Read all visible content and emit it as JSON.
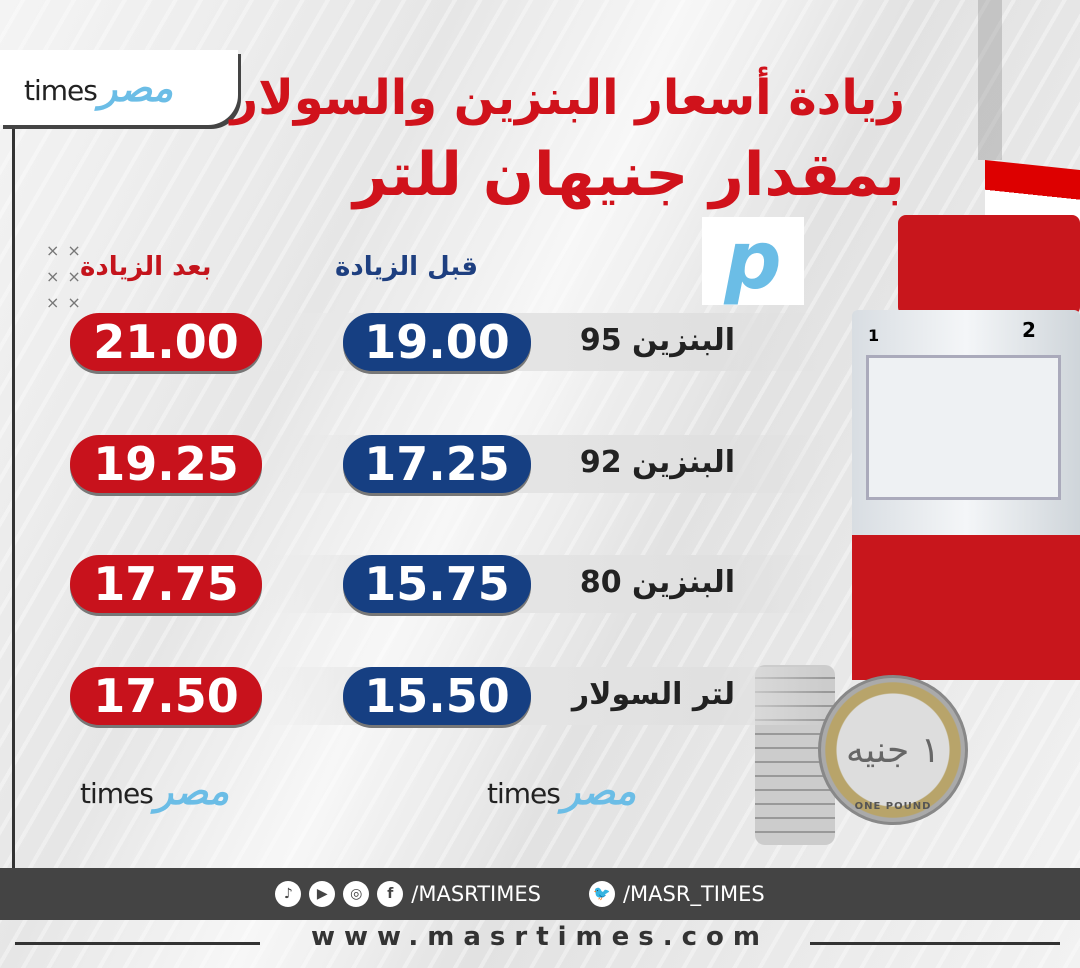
{
  "brand": {
    "logo_latin": "times",
    "logo_arabic": "مصر",
    "accent": "#6bbde6"
  },
  "title": {
    "line1": "زيادة أسعار البنزين والسولار",
    "line2": "بمقدار جنيهان للتر",
    "color": "#d0121b"
  },
  "columns": {
    "before": "قبل الزيادة",
    "after": "بعد الزيادة",
    "before_color": "#163f82",
    "after_color": "#c8121c"
  },
  "rows": [
    {
      "label": "البنزين 95",
      "before": "19.00",
      "after": "21.00"
    },
    {
      "label": "البنزين 92",
      "before": "17.25",
      "after": "19.25"
    },
    {
      "label": "البنزين 80",
      "before": "15.75",
      "after": "17.75"
    },
    {
      "label": "لتر السولار",
      "before": "15.50",
      "after": "17.50"
    }
  ],
  "pump": {
    "nozzle_1": "1",
    "nozzle_2": "2"
  },
  "coin": {
    "text": "١ جنيه",
    "english": "ONE POUND"
  },
  "footer": {
    "social_icons": [
      "tiktok-icon",
      "youtube-icon",
      "instagram-icon",
      "facebook-icon"
    ],
    "handle_main": "/MASRTIMES",
    "handle_twitter": "/MASR_TIMES",
    "website": "www.masrtimes.com"
  }
}
